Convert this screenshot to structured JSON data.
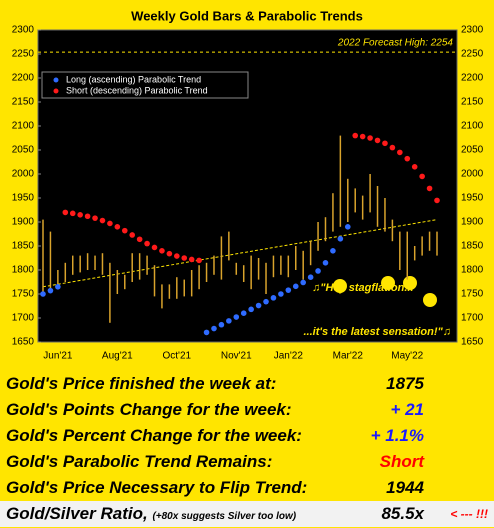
{
  "chart_data": {
    "type": "range",
    "title": "Weekly Gold Bars & Parabolic Trends",
    "categories": [
      null,
      null,
      "Jun'21",
      null,
      null,
      null,
      null,
      null,
      null,
      null,
      "Aug'21",
      null,
      null,
      null,
      null,
      null,
      null,
      null,
      "Oct'21",
      null,
      null,
      null,
      null,
      null,
      null,
      null,
      "Nov'21",
      null,
      null,
      null,
      null,
      null,
      null,
      "Jan'22",
      null,
      null,
      null,
      null,
      null,
      null,
      null,
      "Mar'22",
      null,
      null,
      null,
      null,
      null,
      null,
      null,
      "May'22",
      null,
      null,
      null,
      null
    ],
    "high": [
      1905,
      1880,
      1800,
      1815,
      1830,
      1830,
      1835,
      1830,
      1835,
      1815,
      1800,
      1790,
      1835,
      1835,
      1830,
      1810,
      1770,
      1770,
      1785,
      1780,
      1800,
      1810,
      1815,
      1830,
      1870,
      1880,
      1815,
      1810,
      1830,
      1825,
      1815,
      1830,
      1830,
      1830,
      1850,
      1840,
      1860,
      1900,
      1910,
      1960,
      2080,
      1990,
      1970,
      1955,
      2000,
      1975,
      1950,
      1905,
      1880,
      1880,
      1850,
      1870,
      1880,
      1880
    ],
    "low": [
      1750,
      1760,
      1765,
      1775,
      1790,
      1795,
      1800,
      1800,
      1790,
      1690,
      1750,
      1760,
      1775,
      1780,
      1790,
      1745,
      1720,
      1740,
      1740,
      1745,
      1745,
      1760,
      1775,
      1790,
      1780,
      1820,
      1790,
      1775,
      1760,
      1780,
      1750,
      1785,
      1790,
      1785,
      1800,
      1780,
      1810,
      1840,
      1860,
      1880,
      1890,
      1900,
      1920,
      1905,
      1920,
      1890,
      1880,
      1860,
      1800,
      1780,
      1820,
      1830,
      1840,
      1830
    ],
    "color": "#d9a32c",
    "series": [
      {
        "name": "Long (ascending) Parabolic Trend",
        "color": "#2f6bff",
        "values": [
          1750,
          1757,
          1765,
          null,
          null,
          null,
          null,
          null,
          null,
          null,
          null,
          null,
          null,
          null,
          null,
          null,
          null,
          null,
          null,
          null,
          null,
          null,
          1670,
          1678,
          1686,
          1694,
          1702,
          1710,
          1718,
          1726,
          1734,
          1742,
          1750,
          1758,
          1766,
          1774,
          1785,
          1798,
          1815,
          1840,
          1865,
          1890,
          null,
          null,
          null,
          null,
          null,
          null,
          null,
          null,
          null,
          null,
          null,
          null
        ]
      },
      {
        "name": "Short (descending) Parabolic Trend",
        "color": "#ff1a1a",
        "values": [
          null,
          null,
          null,
          1920,
          1918,
          1915,
          1912,
          1908,
          1903,
          1897,
          1890,
          1882,
          1873,
          1864,
          1855,
          1847,
          1840,
          1834,
          1829,
          1825,
          1822,
          1820,
          null,
          null,
          null,
          null,
          null,
          null,
          null,
          null,
          null,
          null,
          null,
          null,
          null,
          null,
          null,
          null,
          null,
          null,
          null,
          null,
          2080,
          2078,
          2075,
          2070,
          2064,
          2055,
          2045,
          2032,
          2015,
          1995,
          1970,
          1945
        ]
      }
    ],
    "trendline": [
      1765,
      1905
    ],
    "forecast": {
      "value": 2254,
      "label": "2022 Forecast High: 2254"
    },
    "annotations": [
      "♫\"Hey stagflation...",
      "...it's the latest sensation!\"♫"
    ],
    "ylim": [
      1650,
      2300
    ],
    "yticks": [
      1650,
      1700,
      1750,
      1800,
      1850,
      1900,
      1950,
      2000,
      2050,
      2100,
      2150,
      2200,
      2250,
      2300
    ],
    "grid": false
  },
  "table": {
    "rows": [
      {
        "label": "Gold's Price finished the week at:",
        "value": "1875",
        "color": "#000000"
      },
      {
        "label": "Gold's Points Change for the week:",
        "value": "+ 21",
        "color": "#1a1aff"
      },
      {
        "label": "Gold's Percent Change for the week:",
        "value": "+ 1.1%",
        "color": "#1a1aff"
      },
      {
        "label": "Gold's Parabolic Trend Remains:",
        "value": "Short",
        "color": "#ff0000"
      },
      {
        "label": "Gold's Price Necessary to Flip Trend:",
        "value": "1944",
        "color": "#000000"
      },
      {
        "label": "Gold/Silver Ratio,",
        "note": "(+80x suggests Silver too low)",
        "value": "85.5x",
        "flag": "< --- !!!",
        "color": "#000000"
      }
    ]
  }
}
